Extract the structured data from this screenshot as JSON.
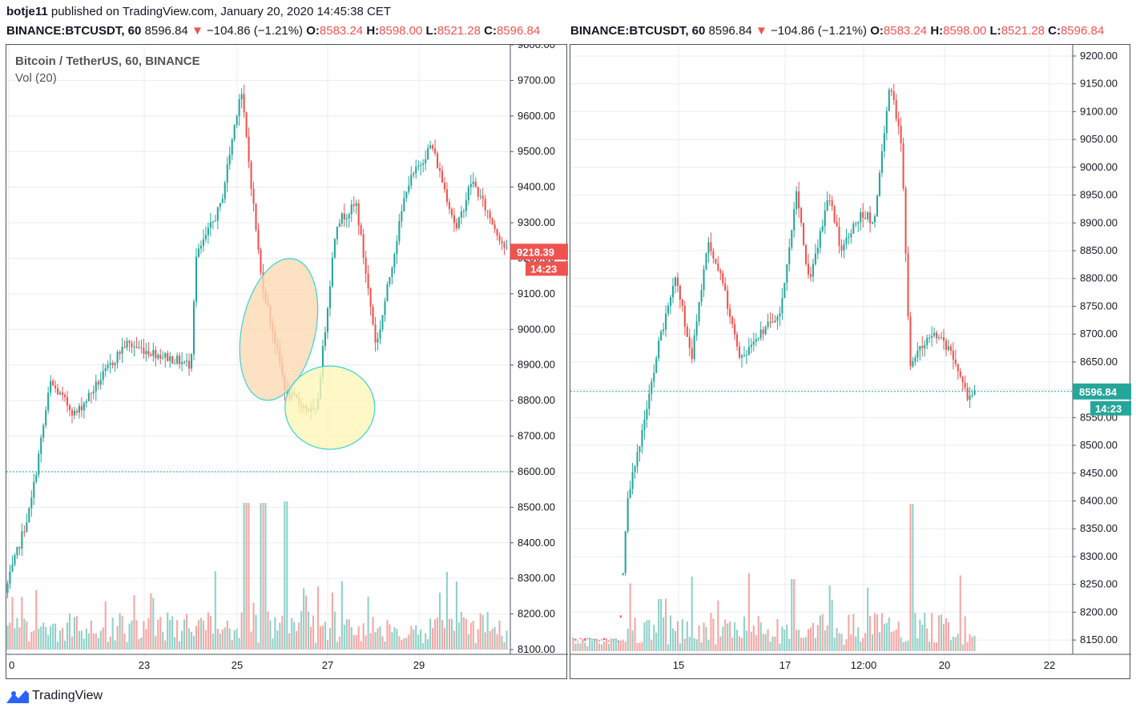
{
  "header": {
    "author": "botje11",
    "published_text": "published on TradingView.com, January 20, 2020 14:45:38 CET"
  },
  "colors": {
    "up": "#26a69a",
    "down": "#ef5350",
    "bg": "#ffffff",
    "grid": "#e9ecf1"
  },
  "footer": {
    "brand": "TradingView",
    "logo_icon": "tradingview-logo-icon"
  },
  "charts": [
    {
      "quote": {
        "symbol": "BINANCE:BTCUSDT, 60",
        "last": "8596.84",
        "arrow": "▼",
        "change": "−104.86 (−1.21%)",
        "o_label": "O:",
        "o": "8583.24",
        "h_label": "H:",
        "h": "8598.00",
        "l_label": "L:",
        "l": "8521.28",
        "c_label": "C:",
        "c": "8596.84"
      },
      "legend_title": "Bitcoin / TetherUS, 60, BINANCE",
      "legend_vol": "Vol (20)",
      "price_badge": "9218.39",
      "time_badge": "14:23",
      "x_ticks": [
        "0",
        "23",
        "25",
        "27",
        "29"
      ],
      "y_ticks": [
        "8100.00",
        "8200.00",
        "8300.00",
        "8400.00",
        "8500.00",
        "8600.00",
        "8700.00",
        "8800.00",
        "8900.00",
        "9000.00",
        "9100.00",
        "9200.00",
        "9300.00",
        "9400.00",
        "9500.00",
        "9600.00",
        "9700.00",
        "9800.00"
      ]
    },
    {
      "quote": {
        "symbol": "BINANCE:BTCUSDT, 60",
        "last": "8596.84",
        "arrow": "▼",
        "change": "−104.86 (−1.21%)",
        "o_label": "O:",
        "o": "8583.24",
        "h_label": "H:",
        "h": "8598.00",
        "l_label": "L:",
        "l": "8521.28",
        "c_label": "C:",
        "c": "8596.84"
      },
      "price_badge": "8596.84",
      "time_badge": "14:23",
      "x_ticks": [
        "15",
        "17",
        "12:00",
        "20",
        "22"
      ],
      "y_ticks": [
        "8150.00",
        "8200.00",
        "8250.00",
        "8300.00",
        "8350.00",
        "8400.00",
        "8450.00",
        "8500.00",
        "8550.00",
        "8600.00",
        "8650.00",
        "8700.00",
        "8750.00",
        "8800.00",
        "8850.00",
        "8900.00",
        "8950.00",
        "9000.00",
        "9050.00",
        "9100.00",
        "9150.00",
        "9200.00"
      ]
    }
  ],
  "chart_data": [
    {
      "type": "candlestick",
      "interval": "60",
      "ylim": [
        8100,
        9800
      ],
      "x_tick_labels": [
        "0",
        "23",
        "25",
        "27",
        "29"
      ],
      "key_points": [
        {
          "t": 0.0,
          "price": 8260
        },
        {
          "t": 0.05,
          "price": 8500
        },
        {
          "t": 0.09,
          "price": 8850
        },
        {
          "t": 0.14,
          "price": 8760
        },
        {
          "t": 0.24,
          "price": 8960
        },
        {
          "t": 0.37,
          "price": 8900
        },
        {
          "t": 0.38,
          "price": 9200
        },
        {
          "t": 0.43,
          "price": 9350
        },
        {
          "t": 0.47,
          "price": 9680
        },
        {
          "t": 0.51,
          "price": 9150
        },
        {
          "t": 0.56,
          "price": 8820
        },
        {
          "t": 0.62,
          "price": 8760
        },
        {
          "t": 0.66,
          "price": 9300
        },
        {
          "t": 0.7,
          "price": 9350
        },
        {
          "t": 0.74,
          "price": 8950
        },
        {
          "t": 0.8,
          "price": 9400
        },
        {
          "t": 0.85,
          "price": 9520
        },
        {
          "t": 0.9,
          "price": 9280
        },
        {
          "t": 0.93,
          "price": 9420
        },
        {
          "t": 1.0,
          "price": 9218
        }
      ],
      "dashed_level": 8600,
      "annotations": [
        {
          "type": "ellipse",
          "fill": "#fbd9b4",
          "center_price": 9000,
          "t": 0.543
        },
        {
          "type": "ellipse",
          "fill": "#fdf6b7",
          "center_price": 8780,
          "t": 0.645
        }
      ]
    },
    {
      "type": "candlestick",
      "interval": "60",
      "ylim": [
        8130,
        9210
      ],
      "x_tick_labels": [
        "15",
        "17",
        "12:00",
        "20",
        "22"
      ],
      "key_points": [
        {
          "t": 0.0,
          "price": 8150
        },
        {
          "t": 0.12,
          "price": 8150
        },
        {
          "t": 0.14,
          "price": 8400
        },
        {
          "t": 0.19,
          "price": 8570
        },
        {
          "t": 0.22,
          "price": 8690
        },
        {
          "t": 0.26,
          "price": 8800
        },
        {
          "t": 0.3,
          "price": 8660
        },
        {
          "t": 0.34,
          "price": 8870
        },
        {
          "t": 0.38,
          "price": 8780
        },
        {
          "t": 0.42,
          "price": 8650
        },
        {
          "t": 0.47,
          "price": 8700
        },
        {
          "t": 0.52,
          "price": 8740
        },
        {
          "t": 0.56,
          "price": 8960
        },
        {
          "t": 0.59,
          "price": 8790
        },
        {
          "t": 0.64,
          "price": 8950
        },
        {
          "t": 0.67,
          "price": 8850
        },
        {
          "t": 0.72,
          "price": 8920
        },
        {
          "t": 0.75,
          "price": 8900
        },
        {
          "t": 0.79,
          "price": 9150
        },
        {
          "t": 0.82,
          "price": 9040
        },
        {
          "t": 0.84,
          "price": 8640
        },
        {
          "t": 0.87,
          "price": 8680
        },
        {
          "t": 0.9,
          "price": 8700
        },
        {
          "t": 0.94,
          "price": 8670
        },
        {
          "t": 0.98,
          "price": 8590
        }
      ],
      "dashed_level": 8596.84
    }
  ]
}
